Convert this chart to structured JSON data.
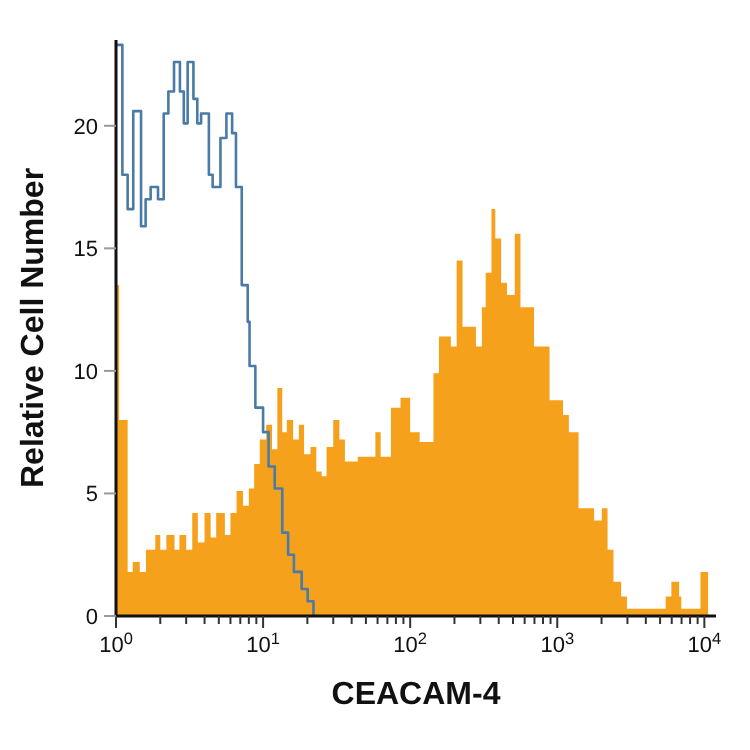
{
  "chart_data": {
    "type": "area",
    "xlabel": "CEACAM-4",
    "ylabel": "Relative Cell Number",
    "log": "x",
    "xlim": [
      1,
      12000
    ],
    "ylim": [
      0,
      23.5
    ],
    "xticks": [
      {
        "value": 1,
        "label": "10$^{0}$"
      },
      {
        "value": 2,
        "label": null
      },
      {
        "value": 3,
        "label": null
      },
      {
        "value": 4,
        "label": null
      },
      {
        "value": 5,
        "label": null
      },
      {
        "value": 6,
        "label": null
      },
      {
        "value": 7,
        "label": null
      },
      {
        "value": 8,
        "label": null
      },
      {
        "value": 9,
        "label": null
      },
      {
        "value": 10,
        "label": "10$^{1}$"
      },
      {
        "value": 20,
        "label": null
      },
      {
        "value": 30,
        "label": null
      },
      {
        "value": 40,
        "label": null
      },
      {
        "value": 50,
        "label": null
      },
      {
        "value": 60,
        "label": null
      },
      {
        "value": 70,
        "label": null
      },
      {
        "value": 80,
        "label": null
      },
      {
        "value": 90,
        "label": null
      },
      {
        "value": 100,
        "label": "10$^{2}$"
      },
      {
        "value": 200,
        "label": null
      },
      {
        "value": 300,
        "label": null
      },
      {
        "value": 400,
        "label": null
      },
      {
        "value": 500,
        "label": null
      },
      {
        "value": 600,
        "label": null
      },
      {
        "value": 700,
        "label": null
      },
      {
        "value": 800,
        "label": null
      },
      {
        "value": 900,
        "label": null
      },
      {
        "value": 1000,
        "label": "10$^{3}$"
      },
      {
        "value": 2000,
        "label": null
      },
      {
        "value": 3000,
        "label": null
      },
      {
        "value": 4000,
        "label": null
      },
      {
        "value": 5000,
        "label": null
      },
      {
        "value": 6000,
        "label": null
      },
      {
        "value": 7000,
        "label": null
      },
      {
        "value": 8000,
        "label": null
      },
      {
        "value": 9000,
        "label": null
      },
      {
        "value": 10000,
        "label": "10$^{4}$"
      }
    ],
    "yticks": [
      0,
      5,
      10,
      15,
      20
    ],
    "series": [
      {
        "color": "#f5a11c",
        "x": [
          1,
          1.05,
          1.2,
          1.3,
          1.45,
          1.6,
          1.85,
          2,
          2.2,
          2.5,
          2.7,
          3,
          3.3,
          3.6,
          4,
          4.4,
          4.8,
          5.5,
          6,
          6.6,
          7.3,
          8,
          8.7,
          9.5,
          10.5,
          11.5,
          12.5,
          13.5,
          14.5,
          16,
          17.5,
          19,
          21,
          23,
          25,
          27,
          30,
          33,
          36,
          40,
          44,
          58,
          63,
          74,
          86,
          100,
          116,
          144,
          157,
          189,
          207,
          227,
          280,
          307,
          326,
          357,
          379,
          415,
          455,
          514,
          562,
          615,
          695,
          886,
          1095,
          1199,
          1396,
          1780,
          2010,
          2198,
          2410,
          2718,
          2977,
          5460,
          5970,
          6740,
          6970,
          9410,
          10600
        ],
        "values": [
          13.5,
          8,
          1.8,
          2.2,
          1.8,
          2.7,
          3.3,
          2.7,
          3.3,
          2.7,
          3.3,
          2.7,
          4.2,
          3,
          4.2,
          3.2,
          4.2,
          3.3,
          4.2,
          5.1,
          4.5,
          5.2,
          6.2,
          7.2,
          7.8,
          6.8,
          9.3,
          7.5,
          8,
          7.2,
          7.8,
          6.6,
          6.9,
          5.9,
          5.7,
          6.9,
          8,
          7.2,
          6.3,
          6.3,
          6.5,
          7.5,
          6.5,
          8.5,
          8.9,
          7.5,
          7.1,
          9.9,
          11.4,
          11,
          14.5,
          11.8,
          11,
          12.6,
          14,
          16.6,
          15.4,
          13.6,
          13.1,
          15.6,
          12.6,
          12.6,
          11,
          8.8,
          8.2,
          7.5,
          4.4,
          3.9,
          4.4,
          2.7,
          1.4,
          0.8,
          0.3,
          0.8,
          1.4,
          0.8,
          0.3,
          1.8,
          0
        ]
      },
      {
        "type": "step",
        "color": "#4a7ba6",
        "x": [
          1,
          1.105,
          1.2,
          1.31,
          1.48,
          1.59,
          1.72,
          1.93,
          2.11,
          2.27,
          2.48,
          2.72,
          2.89,
          3.07,
          3.36,
          3.57,
          3.79,
          4.28,
          4.54,
          5.13,
          5.63,
          6.16,
          6.54,
          7.16,
          7.86,
          8.09,
          8.86,
          10,
          10.9,
          12,
          13.5,
          14.8,
          16.2,
          18.3,
          20.1,
          22
        ],
        "values": [
          23.3,
          18,
          16.6,
          20.6,
          15.9,
          17,
          17.5,
          17,
          20.5,
          21.4,
          22.6,
          21.4,
          20.1,
          22.6,
          21.1,
          20.1,
          20.5,
          18,
          17.5,
          19.5,
          20.5,
          19.7,
          17.5,
          13.5,
          12,
          10.2,
          8.5,
          7.5,
          6.1,
          5.2,
          3.4,
          2.5,
          1.8,
          1.1,
          0.6,
          0
        ]
      }
    ]
  }
}
